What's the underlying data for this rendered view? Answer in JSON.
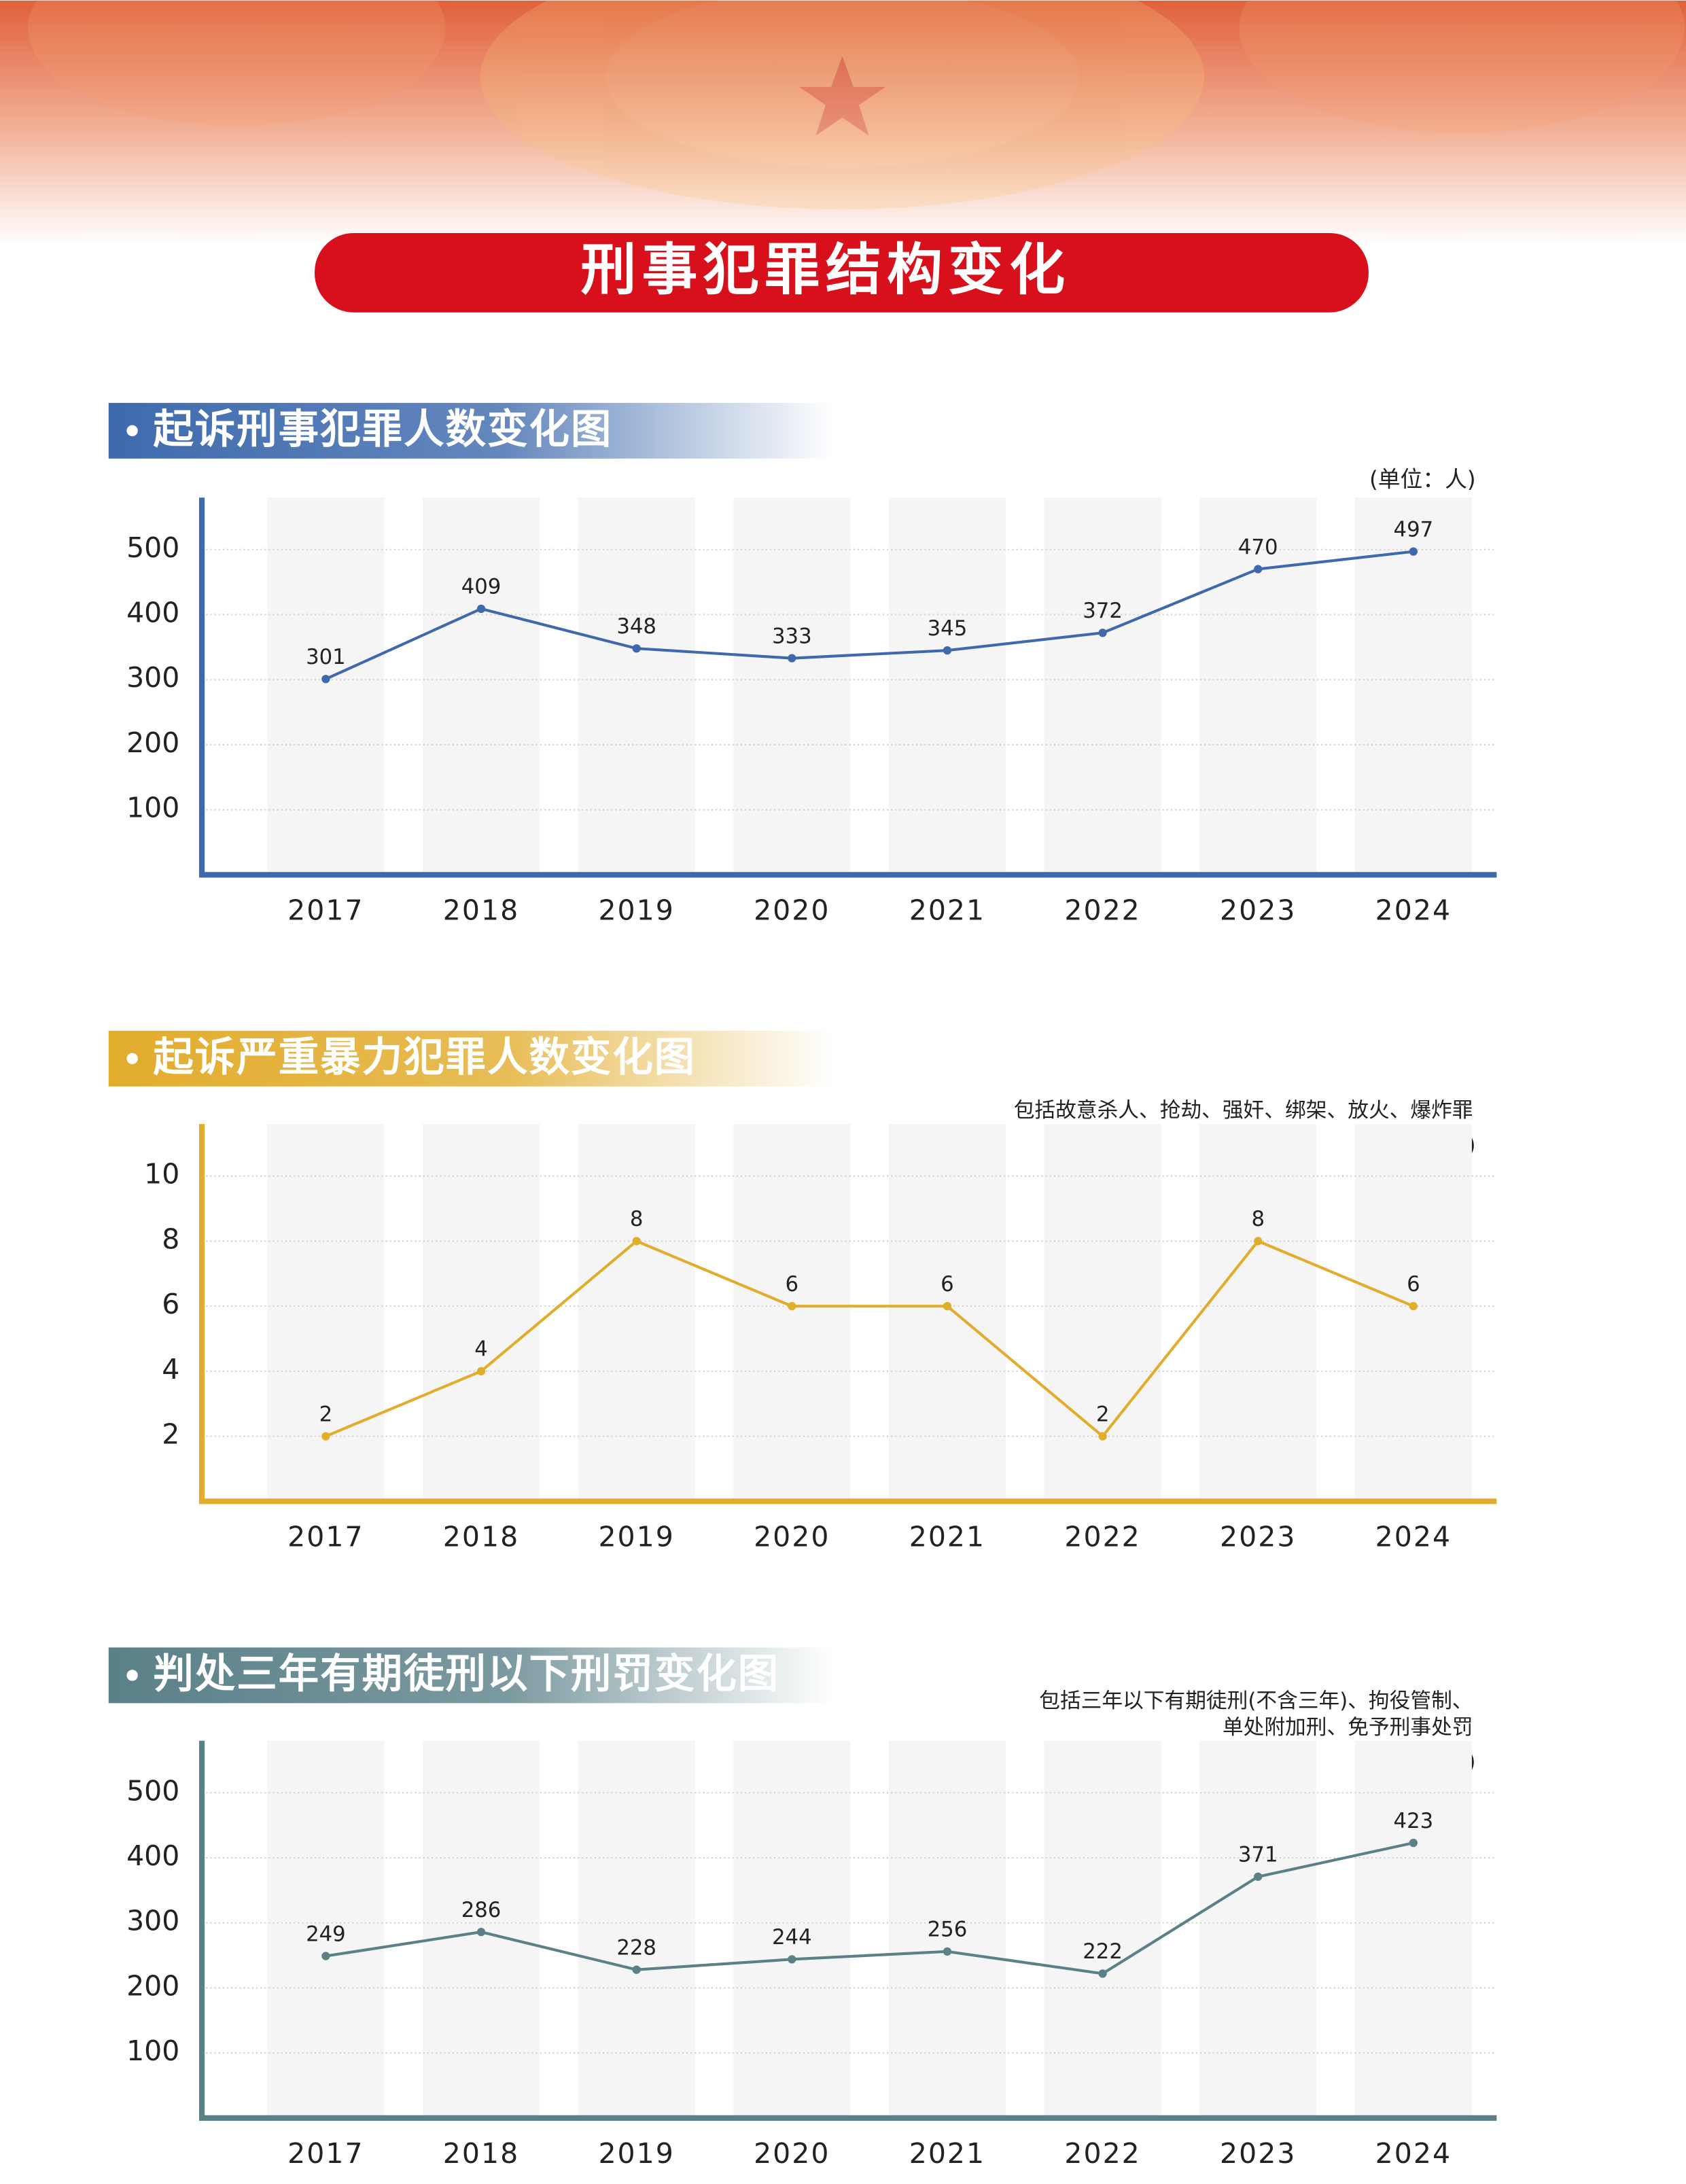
{
  "header": {
    "title": "刑事犯罪结构变化"
  },
  "chart_data": [
    {
      "type": "line",
      "title": "起诉刑事犯罪人数变化图",
      "unit": "(单位：人)",
      "categories": [
        "2017",
        "2018",
        "2019",
        "2020",
        "2021",
        "2022",
        "2023",
        "2024"
      ],
      "values": [
        301,
        409,
        348,
        333,
        345,
        372,
        470,
        497
      ],
      "color": "#3e6aad",
      "ylim": [
        0,
        580
      ],
      "yticks": [
        100,
        200,
        300,
        400,
        500
      ],
      "grid": true
    },
    {
      "type": "line",
      "title": "起诉严重暴力犯罪人数变化图",
      "notes": [
        "包括故意杀人、抢劫、强奸、绑架、放火、爆炸罪"
      ],
      "unit": "(单位：人)",
      "categories": [
        "2017",
        "2018",
        "2019",
        "2020",
        "2021",
        "2022",
        "2023",
        "2024"
      ],
      "values": [
        2,
        4,
        8,
        6,
        6,
        2,
        8,
        6
      ],
      "color": "#e2ac2c",
      "ylim": [
        0,
        11.6
      ],
      "yticks": [
        2,
        4,
        6,
        8,
        10
      ],
      "grid": true
    },
    {
      "type": "line",
      "title": "判处三年有期徒刑以下刑罚变化图",
      "notes": [
        "包括三年以下有期徒刑(不含三年)、拘役管制、",
        "单处附加刑、免予刑事处罚"
      ],
      "unit": "(单位：人)",
      "categories": [
        "2017",
        "2018",
        "2019",
        "2020",
        "2021",
        "2022",
        "2023",
        "2024"
      ],
      "values": [
        249,
        286,
        228,
        244,
        256,
        222,
        371,
        423
      ],
      "color": "#5a8088",
      "ylim": [
        0,
        580
      ],
      "yticks": [
        100,
        200,
        300,
        400,
        500
      ],
      "grid": true
    }
  ]
}
